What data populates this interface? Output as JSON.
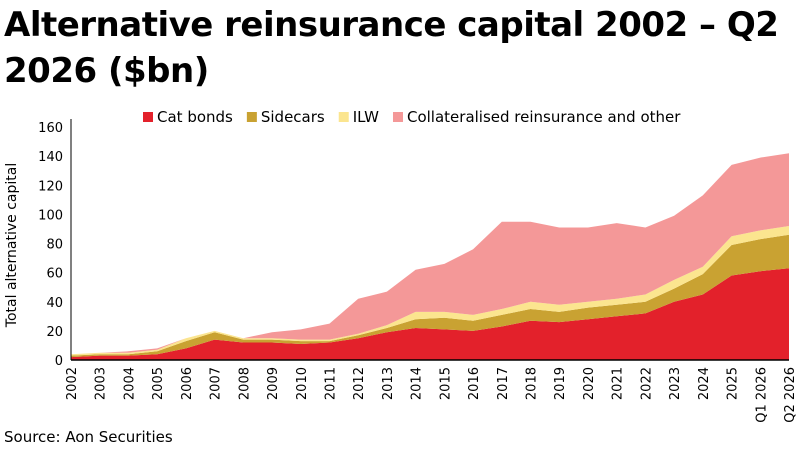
{
  "title": "Alternative reinsurance capital 2002 – Q2 2026 ($bn)",
  "source": "Source: Aon Securities",
  "chart_data": {
    "type": "area",
    "stacked": true,
    "title": "Alternative reinsurance capital 2002 – Q2 2026 ($bn)",
    "ylabel": "Total alternative capital",
    "xlabel": "",
    "ylim": [
      0,
      160
    ],
    "yticks": [
      0,
      20,
      40,
      60,
      80,
      100,
      120,
      140,
      160
    ],
    "grid": false,
    "legend_position": "top",
    "categories": [
      "2002",
      "2003",
      "2004",
      "2005",
      "2006",
      "2007",
      "2008",
      "2009",
      "2010",
      "2011",
      "2012",
      "2013",
      "2014",
      "2015",
      "2016",
      "2017",
      "2018",
      "2019",
      "2020",
      "2021",
      "2022",
      "2023",
      "2024",
      "2025",
      "Q1 2026",
      "Q2 2026"
    ],
    "series": [
      {
        "name": "Cat bonds",
        "color": "#e3212b",
        "values": [
          2,
          3,
          3,
          4,
          8,
          14,
          12,
          12,
          11,
          12,
          15,
          19,
          22,
          21,
          20,
          23,
          27,
          26,
          28,
          30,
          32,
          40,
          45,
          58,
          61,
          63
        ]
      },
      {
        "name": "Sidecars",
        "color": "#c9a232",
        "values": [
          1,
          1,
          1,
          2,
          5,
          5,
          2,
          2,
          2,
          1,
          2,
          3,
          6,
          8,
          7,
          8,
          8,
          7,
          8,
          8,
          8,
          9,
          14,
          21,
          22,
          23
        ]
      },
      {
        "name": "ILW",
        "color": "#fbe58f",
        "values": [
          1,
          1,
          1,
          1,
          2,
          1,
          1,
          1,
          1,
          1,
          1,
          2,
          5,
          4,
          4,
          4,
          5,
          5,
          4,
          4,
          5,
          6,
          5,
          6,
          6,
          6
        ]
      },
      {
        "name": "Collateralised reinsurance and other",
        "color": "#f49898",
        "values": [
          0,
          0,
          1,
          1,
          0,
          0,
          0,
          4,
          7,
          11,
          24,
          23,
          29,
          33,
          45,
          60,
          55,
          53,
          51,
          52,
          46,
          44,
          49,
          49,
          50,
          50
        ]
      }
    ]
  }
}
